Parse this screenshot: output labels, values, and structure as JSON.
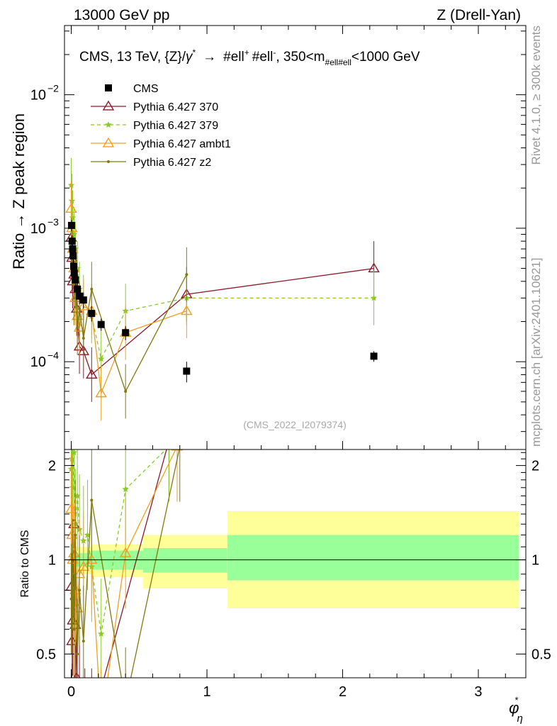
{
  "header": {
    "left": "13000 GeV pp",
    "right": "Z (Drell-Yan)"
  },
  "side_labels": {
    "rivet": "Rivet 4.1.0, ≥ 300k events",
    "mcplots": "mcplots.cern.ch [arXiv:2401.10621]"
  },
  "chart_data": {
    "type": "line",
    "title": "CMS, 13 TeV, {Z}/γ* → #ell+ #ell-, 350<m#ell#ell<1000 GeV",
    "title_parts": {
      "main": "CMS, 13 TeV, {Z}/",
      "gamma": "γ",
      "star": "*",
      "arrow": "→",
      "l1": "#ell",
      "plus": "+",
      "l2": "#ell",
      "minus": "-",
      "range_a": ", 350<m",
      "sub": "#ell#ell",
      "range_b": "<1000 GeV"
    },
    "watermark": "(CMS_2022_I2079374)",
    "ylabel": "Ratio → Z peak region",
    "ratio_ylabel": "Ratio to CMS",
    "xlabel_main": "φ",
    "xlabel_star": "*",
    "xlabel_sub": "η",
    "xlim": [
      -0.05,
      3.35
    ],
    "ylim": [
      2.2e-05,
      0.033
    ],
    "ratio_ylim": [
      0.42,
      2.25
    ],
    "x_ticks": [
      {
        "value": 0,
        "label": "0"
      },
      {
        "value": 1,
        "label": "1"
      },
      {
        "value": 2,
        "label": "2"
      },
      {
        "value": 3,
        "label": "3"
      }
    ],
    "y_ticks": [
      {
        "value": 0.01,
        "base": "10",
        "exp": "−2"
      },
      {
        "value": 0.001,
        "base": "10",
        "exp": "−3"
      },
      {
        "value": 0.0001,
        "base": "10",
        "exp": "−4"
      }
    ],
    "ratio_ticks": [
      {
        "value": 0.5,
        "label": "0.5"
      },
      {
        "value": 1,
        "label": "1"
      },
      {
        "value": 2,
        "label": "2"
      }
    ],
    "bins": [
      {
        "lo": 0.0,
        "hi": 0.004,
        "x": 0.002
      },
      {
        "lo": 0.004,
        "hi": 0.008,
        "x": 0.006
      },
      {
        "lo": 0.008,
        "hi": 0.012,
        "x": 0.01
      },
      {
        "lo": 0.012,
        "hi": 0.016,
        "x": 0.014
      },
      {
        "lo": 0.016,
        "hi": 0.02,
        "x": 0.018
      },
      {
        "lo": 0.02,
        "hi": 0.024,
        "x": 0.022
      },
      {
        "lo": 0.024,
        "hi": 0.029,
        "x": 0.0265
      },
      {
        "lo": 0.029,
        "hi": 0.034,
        "x": 0.0315
      },
      {
        "lo": 0.034,
        "hi": 0.039,
        "x": 0.0365
      },
      {
        "lo": 0.039,
        "hi": 0.045,
        "x": 0.042
      },
      {
        "lo": 0.045,
        "hi": 0.051,
        "x": 0.048
      },
      {
        "lo": 0.051,
        "hi": 0.057,
        "x": 0.054
      },
      {
        "lo": 0.057,
        "hi": 0.064,
        "x": 0.0605
      },
      {
        "lo": 0.064,
        "hi": 0.072,
        "x": 0.068
      },
      {
        "lo": 0.072,
        "hi": 0.081,
        "x": 0.0765
      },
      {
        "lo": 0.081,
        "hi": 0.091,
        "x": 0.086
      },
      {
        "lo": 0.091,
        "hi": 0.102,
        "x": 0.0965
      },
      {
        "lo": 0.102,
        "hi": 0.114,
        "x": 0.108
      },
      {
        "lo": 0.114,
        "hi": 0.128,
        "x": 0.121
      },
      {
        "lo": 0.128,
        "hi": 0.145,
        "x": 0.1365
      },
      {
        "lo": 0.145,
        "hi": 0.165,
        "x": 0.155
      },
      {
        "lo": 0.165,
        "hi": 0.189,
        "x": 0.177
      },
      {
        "lo": 0.189,
        "hi": 0.219,
        "x": 0.204
      },
      {
        "lo": 0.219,
        "hi": 0.258,
        "x": 0.2385
      },
      {
        "lo": 0.258,
        "hi": 0.312,
        "x": 0.285
      },
      {
        "lo": 0.312,
        "hi": 0.391,
        "x": 0.3515
      },
      {
        "lo": 0.391,
        "hi": 0.524,
        "x": 0.4575
      },
      {
        "lo": 0.524,
        "hi": 0.695,
        "x": 0.6095
      },
      {
        "lo": 0.695,
        "hi": 0.918,
        "x": 0.8065
      },
      {
        "lo": 0.918,
        "hi": 1.153,
        "x": 1.0355
      },
      {
        "lo": 1.153,
        "hi": 1.496,
        "x": 1.3245
      },
      {
        "lo": 1.496,
        "hi": 1.947,
        "x": 1.7215
      },
      {
        "lo": 1.947,
        "hi": 2.522,
        "x": 2.2345
      },
      {
        "lo": 2.522,
        "hi": 3.277,
        "x": 2.8995
      }
    ],
    "data_points": [
      {
        "x": 0.002,
        "y": 0.00105,
        "err": 0.0001
      },
      {
        "x": 0.006,
        "y": 0.0008,
        "err": 8e-05
      },
      {
        "x": 0.01,
        "y": 0.0007,
        "err": 7e-05
      },
      {
        "x": 0.014,
        "y": 0.00062,
        "err": 7e-05
      },
      {
        "x": 0.018,
        "y": 0.00052,
        "err": 6e-05
      },
      {
        "x": 0.022,
        "y": 0.00046,
        "err": 6e-05
      },
      {
        "x": 0.03,
        "y": 0.00041,
        "err": 5e-05
      },
      {
        "x": 0.045,
        "y": 0.00035,
        "err": 5e-05
      },
      {
        "x": 0.06,
        "y": 0.00031,
        "err": 4e-05
      },
      {
        "x": 0.09,
        "y": 0.00029,
        "err": 4e-05
      },
      {
        "x": 0.15,
        "y": 0.00023,
        "err": 3e-05
      },
      {
        "x": 0.22,
        "y": 0.00019,
        "err": 2e-05
      },
      {
        "x": 0.4,
        "y": 0.000165,
        "err": 2e-05
      },
      {
        "x": 0.85,
        "y": 8.5e-05,
        "err": 1.5e-05
      },
      {
        "x": 2.23,
        "y": 0.00011,
        "err": 1e-05
      }
    ],
    "ratio_bands": [
      {
        "lo": 0.0,
        "hi": 0.15,
        "inner": [
          0.95,
          1.05
        ],
        "outer": [
          0.9,
          1.1
        ]
      },
      {
        "lo": 0.15,
        "hi": 0.53,
        "inner": [
          0.93,
          1.07
        ],
        "outer": [
          0.88,
          1.12
        ]
      },
      {
        "lo": 0.53,
        "hi": 1.15,
        "inner": [
          0.91,
          1.09
        ],
        "outer": [
          0.81,
          1.2
        ]
      },
      {
        "lo": 1.15,
        "hi": 3.3,
        "inner": [
          0.86,
          1.2
        ],
        "outer": [
          0.7,
          1.43
        ]
      }
    ],
    "series": [
      {
        "name": "Pythia 6.427 370",
        "color": "#8b1a2b",
        "marker": "triangle-open",
        "dash": "",
        "points": [
          {
            "x": 0.0,
            "y": 0.00085
          },
          {
            "x": 0.005,
            "y": 0.0006
          },
          {
            "x": 0.01,
            "y": 0.0004
          },
          {
            "x": 0.02,
            "y": 0.00045
          },
          {
            "x": 0.03,
            "y": 0.00035
          },
          {
            "x": 0.04,
            "y": 0.00025
          },
          {
            "x": 0.06,
            "y": 0.00013
          },
          {
            "x": 0.09,
            "y": 0.00012
          },
          {
            "x": 0.15,
            "y": 8e-05
          },
          {
            "x": 0.85,
            "y": 0.00032
          },
          {
            "x": 2.23,
            "y": 0.0005
          }
        ],
        "ratio": [
          {
            "x": 0.0,
            "y": 0.82
          },
          {
            "x": 0.005,
            "y": 0.55
          },
          {
            "x": 0.01,
            "y": 0.64
          },
          {
            "x": 0.02,
            "y": 1.3
          },
          {
            "x": 0.03,
            "y": 0.62
          },
          {
            "x": 0.04,
            "y": 0.42
          },
          {
            "x": 0.06,
            "y": 0.38
          },
          {
            "x": 0.1,
            "y": 0.3
          },
          {
            "x": 0.15,
            "y": 0.3
          },
          {
            "x": 0.72,
            "y": 2.4
          }
        ]
      },
      {
        "name": "Pythia 6.427 379",
        "color": "#8ac926",
        "marker": "star",
        "dash": "5,4",
        "points": [
          {
            "x": 0.0,
            "y": 0.0021
          },
          {
            "x": 0.005,
            "y": 0.0016
          },
          {
            "x": 0.01,
            "y": 0.0012
          },
          {
            "x": 0.02,
            "y": 0.0009
          },
          {
            "x": 0.03,
            "y": 0.0007
          },
          {
            "x": 0.045,
            "y": 0.0005
          },
          {
            "x": 0.06,
            "y": 0.00035
          },
          {
            "x": 0.09,
            "y": 0.00028
          },
          {
            "x": 0.15,
            "y": 0.00022
          },
          {
            "x": 0.22,
            "y": 0.000105
          },
          {
            "x": 0.4,
            "y": 0.00024
          },
          {
            "x": 0.85,
            "y": 0.0003
          },
          {
            "x": 2.23,
            "y": 0.0003
          }
        ],
        "ratio": [
          {
            "x": 0.0,
            "y": 1.95
          },
          {
            "x": 0.005,
            "y": 2.1
          },
          {
            "x": 0.01,
            "y": 1.7
          },
          {
            "x": 0.02,
            "y": 2.2
          },
          {
            "x": 0.03,
            "y": 1.3
          },
          {
            "x": 0.045,
            "y": 1.6
          },
          {
            "x": 0.06,
            "y": 1.25
          },
          {
            "x": 0.09,
            "y": 1.15
          },
          {
            "x": 0.12,
            "y": 1.2
          },
          {
            "x": 0.15,
            "y": 0.95
          },
          {
            "x": 0.22,
            "y": 0.58
          },
          {
            "x": 0.4,
            "y": 1.68
          },
          {
            "x": 0.72,
            "y": 2.3
          }
        ]
      },
      {
        "name": "Pythia 6.427 ambt1",
        "color": "#f0a020",
        "marker": "triangle-open",
        "dash": "",
        "points": [
          {
            "x": 0.0,
            "y": 0.0014
          },
          {
            "x": 0.005,
            "y": 0.001
          },
          {
            "x": 0.01,
            "y": 0.0007
          },
          {
            "x": 0.02,
            "y": 0.0005
          },
          {
            "x": 0.03,
            "y": 0.0003
          },
          {
            "x": 0.045,
            "y": 0.00022
          },
          {
            "x": 0.06,
            "y": 0.00018
          },
          {
            "x": 0.09,
            "y": 0.00026
          },
          {
            "x": 0.15,
            "y": 0.00024
          },
          {
            "x": 0.22,
            "y": 5.8e-05
          },
          {
            "x": 0.4,
            "y": 0.000165
          },
          {
            "x": 0.85,
            "y": 0.00024
          }
        ],
        "ratio": [
          {
            "x": 0.0,
            "y": 1.45
          },
          {
            "x": 0.005,
            "y": 1.2
          },
          {
            "x": 0.01,
            "y": 1.0
          },
          {
            "x": 0.02,
            "y": 1.05
          },
          {
            "x": 0.03,
            "y": 0.8
          },
          {
            "x": 0.045,
            "y": 0.7
          },
          {
            "x": 0.06,
            "y": 0.9
          },
          {
            "x": 0.09,
            "y": 0.95
          },
          {
            "x": 0.15,
            "y": 1.0
          },
          {
            "x": 0.22,
            "y": 0.3
          },
          {
            "x": 0.4,
            "y": 1.05
          },
          {
            "x": 0.78,
            "y": 2.3
          }
        ]
      },
      {
        "name": "Pythia 6.427 z2",
        "color": "#807a10",
        "marker": "dot",
        "dash": "",
        "points": [
          {
            "x": 0.0,
            "y": 0.00075
          },
          {
            "x": 0.005,
            "y": 0.00055
          },
          {
            "x": 0.01,
            "y": 0.0006
          },
          {
            "x": 0.02,
            "y": 0.0003
          },
          {
            "x": 0.03,
            "y": 0.0004
          },
          {
            "x": 0.045,
            "y": 0.00018
          },
          {
            "x": 0.06,
            "y": 0.00025
          },
          {
            "x": 0.09,
            "y": 0.00015
          },
          {
            "x": 0.15,
            "y": 0.00035
          },
          {
            "x": 0.4,
            "y": 6e-05
          },
          {
            "x": 0.85,
            "y": 0.00045
          }
        ],
        "ratio": [
          {
            "x": 0.0,
            "y": 0.75
          },
          {
            "x": 0.005,
            "y": 0.7
          },
          {
            "x": 0.01,
            "y": 0.9
          },
          {
            "x": 0.02,
            "y": 0.6
          },
          {
            "x": 0.03,
            "y": 1.2
          },
          {
            "x": 0.045,
            "y": 0.5
          },
          {
            "x": 0.06,
            "y": 0.8
          },
          {
            "x": 0.09,
            "y": 0.55
          },
          {
            "x": 0.15,
            "y": 1.55
          },
          {
            "x": 0.4,
            "y": 0.35
          },
          {
            "x": 0.8,
            "y": 2.3
          }
        ]
      }
    ]
  }
}
